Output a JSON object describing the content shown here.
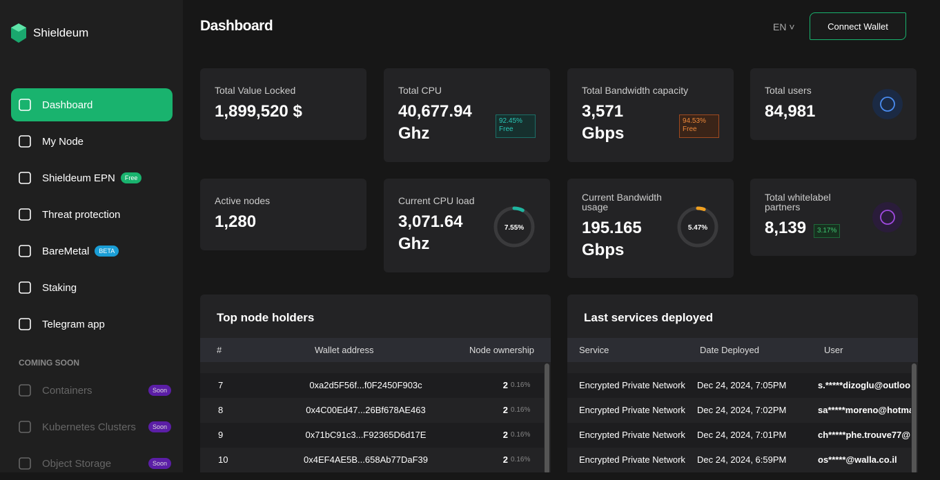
{
  "sidebar": {
    "brand": "Shieldeum",
    "nav": [
      {
        "label": "Dashboard"
      },
      {
        "label": "My Node"
      },
      {
        "label": "Shieldeum EPN",
        "badge": "Free"
      },
      {
        "label": "Threat protection"
      },
      {
        "label": "BareMetal",
        "badge": "BETA"
      },
      {
        "label": "Staking"
      },
      {
        "label": "Telegram app"
      }
    ],
    "section": "COMING SOON",
    "soon": [
      {
        "label": "Containers",
        "badge": "Soon"
      },
      {
        "label": "Kubernetes Clusters",
        "badge": "Soon"
      },
      {
        "label": "Object Storage",
        "badge": "Soon"
      }
    ]
  },
  "header": {
    "title": "Dashboard",
    "language": "EN",
    "button": "Connect Wallet"
  },
  "cards": [
    {
      "title": "Total Value Locked",
      "value": "1,899,520 $"
    },
    {
      "title": "Total CPU",
      "value": "40,677.94",
      "unit": "Ghz",
      "badge": "92.45%",
      "badge_note": "Free"
    },
    {
      "title": "Total Bandwidth capacity",
      "value": "3,571",
      "unit": "Gbps",
      "badge": "94.53%",
      "badge_note": "Free"
    },
    {
      "title": "Total users",
      "value": "84,981"
    },
    {
      "title": "Active nodes",
      "value": "1,280"
    },
    {
      "title": "Current CPU load",
      "value": "3,071.64",
      "unit": "Ghz",
      "ring": {
        "value": 7.55,
        "label": "7.55%"
      }
    },
    {
      "title": "Current Bandwidth usage",
      "value": "195.165",
      "unit": "Gbps",
      "ring": {
        "value": 5.47,
        "label": "5.47%"
      }
    },
    {
      "title": "Total whitelabel partners",
      "value": "8,139",
      "badge": "3.17%"
    }
  ],
  "holders": {
    "title": "Top node holders",
    "columns": [
      "#",
      "Wallet address",
      "Node ownership"
    ],
    "rows": [
      [
        "7",
        "0xa2d5F56f...f0F2450F903c",
        "2",
        "0.16%"
      ],
      [
        "8",
        "0x4C00Ed47...26Bf678AE463",
        "2",
        "0.16%"
      ],
      [
        "9",
        "0x71bC91c3...F92365D6d17E",
        "2",
        "0.16%"
      ],
      [
        "10",
        "0x4EF4AE5B...658Ab77DaF39",
        "2",
        "0.16%"
      ]
    ]
  },
  "services": {
    "title": "Last services deployed",
    "columns": [
      "Service",
      "Date Deployed",
      "User"
    ],
    "rows": [
      [
        "Encrypted Private Network",
        "Dec 24, 2024, 7:05PM",
        "s.*****dizoglu@outloo"
      ],
      [
        "Encrypted Private Network",
        "Dec 24, 2024, 7:02PM",
        "sa*****moreno@hotma"
      ],
      [
        "Encrypted Private Network",
        "Dec 24, 2024, 7:01PM",
        "ch*****phe.trouve77@"
      ],
      [
        "Encrypted Private Network",
        "Dec 24, 2024, 6:59PM",
        "os*****@walla.co.il"
      ]
    ]
  }
}
